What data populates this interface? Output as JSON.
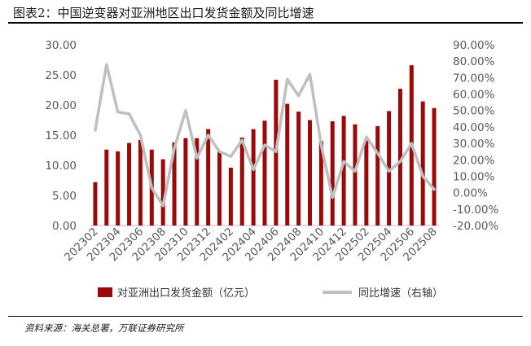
{
  "title": "图表2：中国逆变器对亚洲地区出口发货金额及同比增速",
  "source": "资料来源：海关总署，万联证券研究所",
  "colors": {
    "bar": "#9b0a0a",
    "line": "#bfbfbf",
    "axis_text": "#595959"
  },
  "chart_data": {
    "type": "bar",
    "categories": [
      "202302",
      "202303",
      "202304",
      "202305",
      "202306",
      "202307",
      "202308",
      "202309",
      "202310",
      "202311",
      "202312",
      "202401",
      "202402",
      "202403",
      "202404",
      "202405",
      "202406",
      "202407",
      "202408",
      "202409",
      "202410",
      "202411",
      "202412",
      "202501",
      "202502",
      "202503",
      "202504",
      "202505",
      "202506",
      "202507",
      "202508"
    ],
    "xticklabels": [
      "202302",
      "202304",
      "202306",
      "202308",
      "202310",
      "202312",
      "202402",
      "202404",
      "202406",
      "202408",
      "202410",
      "202412",
      "202502",
      "202504",
      "202506",
      "202508"
    ],
    "series": [
      {
        "name": "对亚洲出口发货金额（亿元）",
        "type": "bar",
        "axis": "left",
        "values": [
          7.2,
          12.6,
          12.3,
          13.7,
          14.2,
          12.6,
          11.0,
          13.8,
          14.5,
          14.5,
          16.0,
          12.4,
          9.6,
          14.6,
          16.0,
          17.4,
          24.2,
          20.2,
          18.9,
          17.5,
          14.0,
          17.3,
          18.2,
          16.8,
          14.1,
          16.5,
          19.0,
          22.7,
          26.6,
          20.6,
          19.5
        ]
      },
      {
        "name": "同比增速（右轴）",
        "type": "line",
        "axis": "right",
        "values": [
          38,
          78,
          49,
          48,
          35,
          3,
          -8,
          27,
          50,
          21,
          35,
          25,
          22,
          32,
          14,
          29,
          25,
          69,
          59,
          72,
          29,
          -3,
          19,
          13,
          34,
          24,
          13,
          19,
          30,
          10,
          2
        ]
      }
    ],
    "left_axis": {
      "ylim": [
        0,
        30
      ],
      "ticks": [
        "0.00",
        "5.00",
        "10.00",
        "15.00",
        "20.00",
        "25.00",
        "30.00"
      ]
    },
    "right_axis": {
      "ylim": [
        -20,
        90
      ],
      "ticks": [
        "-20.00%",
        "-10.00%",
        "0.00%",
        "10.00%",
        "20.00%",
        "30.00%",
        "40.00%",
        "50.00%",
        "60.00%",
        "70.00%",
        "80.00%",
        "90.00%"
      ]
    },
    "legend": {
      "position": "bottom",
      "items": [
        "对亚洲出口发货金额（亿元）",
        "同比增速（右轴）"
      ]
    },
    "grid": false
  }
}
